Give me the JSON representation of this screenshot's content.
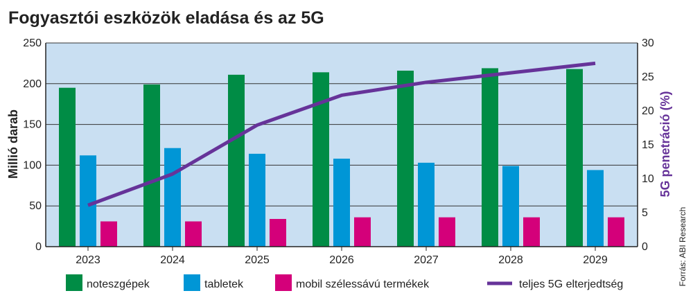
{
  "chart_data": {
    "type": "bar",
    "title": "Fogyasztói eszközök eladása és az 5G",
    "ylabel": "Millió darab",
    "y2label": "5G penetráció (%)",
    "source": "Forrás: ABI Research",
    "categories": [
      "2023",
      "2024",
      "2025",
      "2026",
      "2027",
      "2028",
      "2029"
    ],
    "ylim": [
      0,
      250
    ],
    "yticks": [
      0,
      50,
      100,
      150,
      200,
      250
    ],
    "y2lim": [
      0,
      30
    ],
    "y2ticks": [
      0,
      5,
      10,
      15,
      20,
      25,
      30
    ],
    "grid": true,
    "legend_position": "bottom",
    "series": [
      {
        "name": "noteszgépek",
        "type": "bar",
        "axis": "left",
        "color": "#008c45",
        "values": [
          195,
          199,
          211,
          214,
          216,
          219,
          218
        ]
      },
      {
        "name": "tabletek",
        "type": "bar",
        "axis": "left",
        "color": "#0096d6",
        "values": [
          112,
          121,
          114,
          108,
          103,
          99,
          94
        ]
      },
      {
        "name": "mobil szélessávú termékek",
        "type": "bar",
        "axis": "left",
        "color": "#d4007a",
        "values": [
          31,
          31,
          34,
          36,
          36,
          36,
          36
        ]
      },
      {
        "name": "teljes 5G elterjedtség",
        "type": "line",
        "axis": "right",
        "color": "#663399",
        "values": [
          6.1,
          10.7,
          17.9,
          22.3,
          24.2,
          25.6,
          27
        ]
      }
    ]
  }
}
